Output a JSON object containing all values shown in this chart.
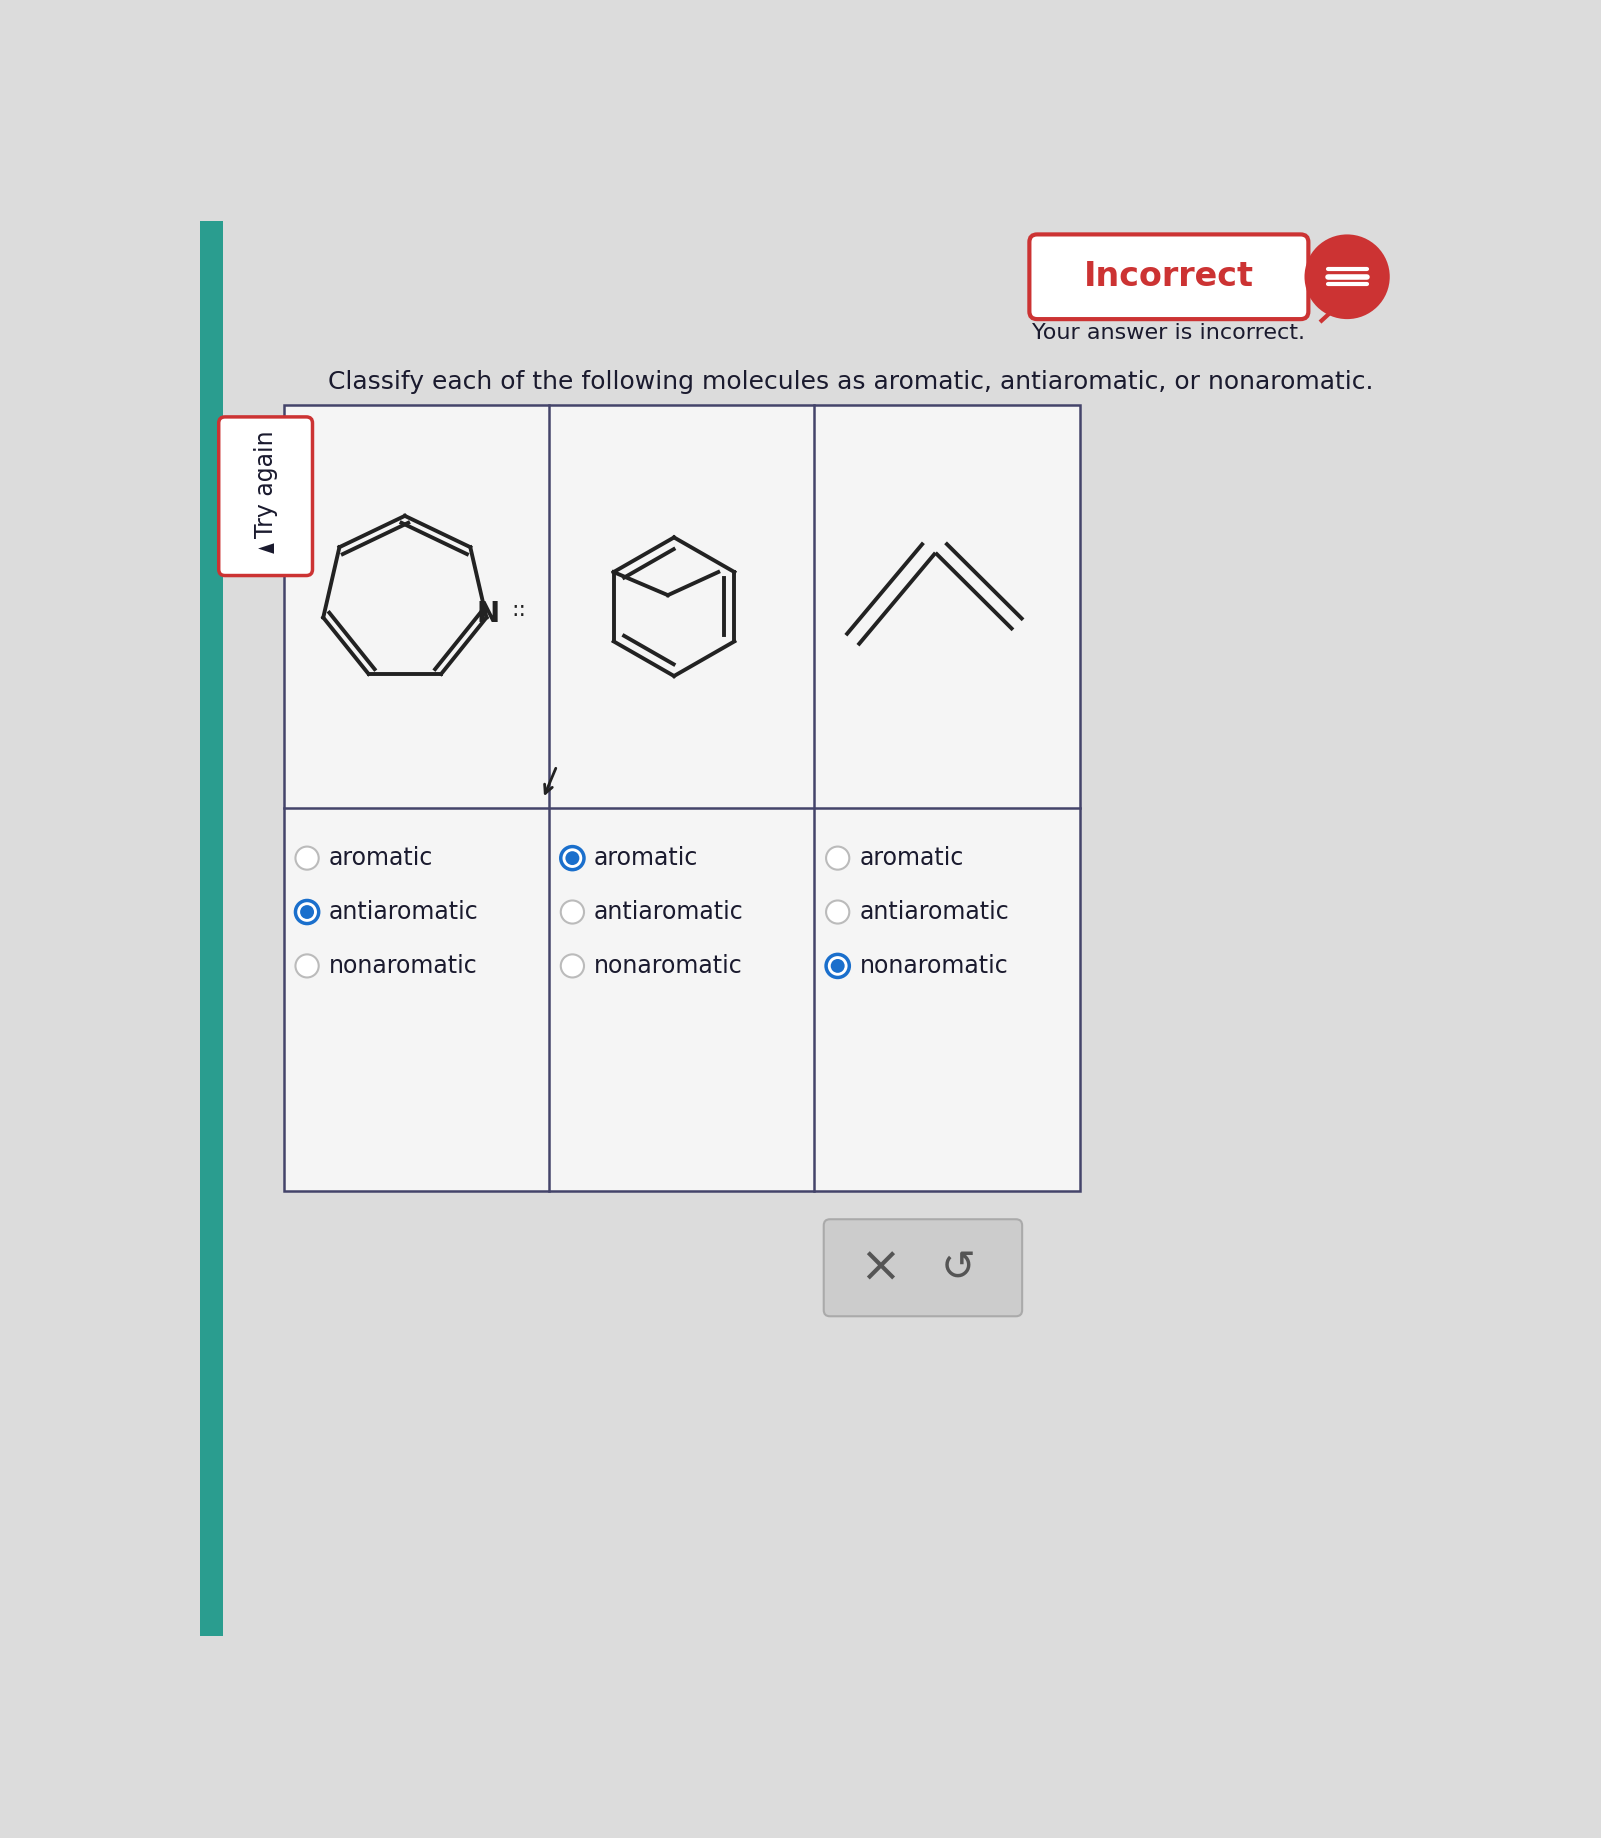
{
  "title_incorrect": "Incorrect",
  "subtitle": "Your answer is incorrect.",
  "question": "Classify each of the following molecules as aromatic, antiaromatic, or nonaromatic.",
  "bg_color": "#dcdcdc",
  "table_bg": "#f5f5f5",
  "incorrect_box_color": "#cc3333",
  "try_again_color": "#cc3333",
  "teal_color": "#2a9d8f",
  "col_options": [
    "aromatic",
    "antiaromatic",
    "nonaromatic"
  ],
  "col1_selected": 1,
  "col2_selected": 0,
  "col3_selected": 0,
  "selected_color": "#1a6fcc",
  "unselected_color": "#bbbbbb",
  "x_button_bg": "#cccccc",
  "font_color": "#1a1a2e",
  "dark_color": "#222222"
}
